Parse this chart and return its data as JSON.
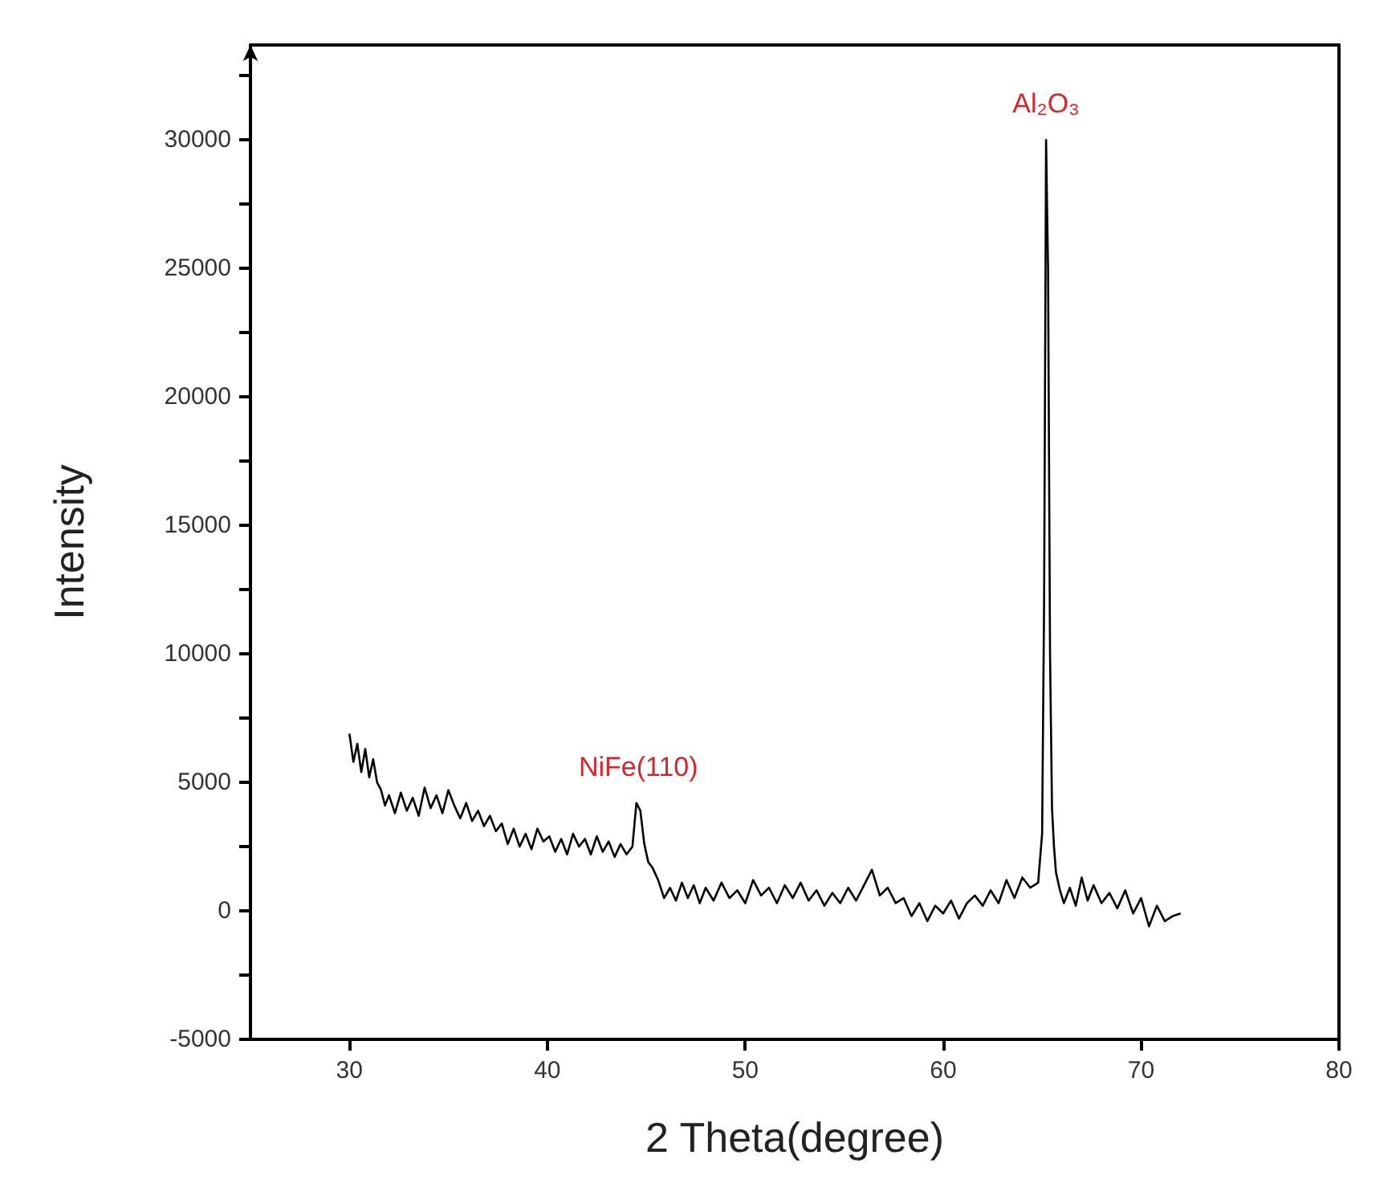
{
  "chart_data": {
    "type": "line",
    "xlabel": "2 Theta(degree)",
    "ylabel": "Intensity",
    "xlim": [
      25,
      80
    ],
    "xticks": [
      30,
      40,
      50,
      60,
      70,
      80
    ],
    "ylim": [
      -5000,
      33700
    ],
    "yticks": [
      -5000,
      0,
      5000,
      10000,
      15000,
      20000,
      25000,
      30000
    ],
    "grid": false,
    "marker": "none",
    "line_style": "solid",
    "annotations": [
      {
        "text": "NiFe(110)",
        "x": 44.6,
        "y": 4200
      },
      {
        "text": "Al₂O₃",
        "x": 65.2,
        "y": 30000
      }
    ],
    "series": [
      {
        "color": "#000000",
        "x": [
          30,
          30.2,
          30.4,
          30.6,
          30.8,
          31,
          31.2,
          31.4,
          31.6,
          31.8,
          32,
          32.3,
          32.6,
          32.9,
          33.2,
          33.5,
          33.8,
          34.1,
          34.4,
          34.7,
          35,
          35.3,
          35.6,
          35.9,
          36.2,
          36.5,
          36.8,
          37.1,
          37.4,
          37.7,
          38,
          38.3,
          38.6,
          38.9,
          39.2,
          39.5,
          39.8,
          40.1,
          40.4,
          40.7,
          41,
          41.3,
          41.6,
          41.9,
          42.2,
          42.5,
          42.8,
          43.1,
          43.4,
          43.7,
          44,
          44.3,
          44.5,
          44.7,
          44.9,
          45.1,
          45.3,
          45.6,
          45.9,
          46.2,
          46.5,
          46.8,
          47.1,
          47.4,
          47.7,
          48,
          48.4,
          48.8,
          49.2,
          49.6,
          50,
          50.4,
          50.8,
          51.2,
          51.6,
          52,
          52.4,
          52.8,
          53.2,
          53.6,
          54,
          54.4,
          54.8,
          55.2,
          55.6,
          56,
          56.4,
          56.8,
          57.2,
          57.6,
          58,
          58.4,
          58.8,
          59.2,
          59.6,
          60,
          60.4,
          60.8,
          61.2,
          61.6,
          62,
          62.4,
          62.8,
          63.2,
          63.6,
          64,
          64.4,
          64.8,
          65,
          65.1,
          65.2,
          65.3,
          65.4,
          65.5,
          65.6,
          65.7,
          65.9,
          66.1,
          66.4,
          66.7,
          67,
          67.3,
          67.6,
          68,
          68.4,
          68.8,
          69.2,
          69.6,
          70,
          70.4,
          70.8,
          71.2,
          71.6,
          72
        ],
        "values": [
          6900,
          5800,
          6500,
          5400,
          6300,
          5200,
          5900,
          5000,
          4700,
          4100,
          4500,
          3800,
          4600,
          3900,
          4400,
          3700,
          4800,
          4000,
          4500,
          3800,
          4700,
          4100,
          3600,
          4200,
          3500,
          3900,
          3300,
          3700,
          3100,
          3400,
          2600,
          3200,
          2500,
          3000,
          2400,
          3200,
          2700,
          2900,
          2300,
          2800,
          2200,
          3000,
          2500,
          2800,
          2200,
          2900,
          2300,
          2700,
          2100,
          2600,
          2200,
          2500,
          4200,
          3900,
          2600,
          1900,
          1700,
          1200,
          500,
          900,
          400,
          1100,
          500,
          1000,
          300,
          900,
          400,
          1100,
          500,
          800,
          300,
          1200,
          600,
          900,
          300,
          1000,
          500,
          1100,
          400,
          800,
          200,
          700,
          300,
          900,
          400,
          1000,
          1600,
          600,
          900,
          300,
          500,
          -200,
          300,
          -400,
          200,
          -100,
          400,
          -300,
          300,
          600,
          200,
          800,
          300,
          1200,
          500,
          1300,
          900,
          1100,
          3000,
          12000,
          30000,
          25000,
          10000,
          4000,
          2500,
          1500,
          800,
          300,
          900,
          200,
          1300,
          400,
          1000,
          300,
          700,
          100,
          800,
          -100,
          500,
          -600,
          200,
          -400,
          -200,
          -100
        ]
      }
    ]
  }
}
